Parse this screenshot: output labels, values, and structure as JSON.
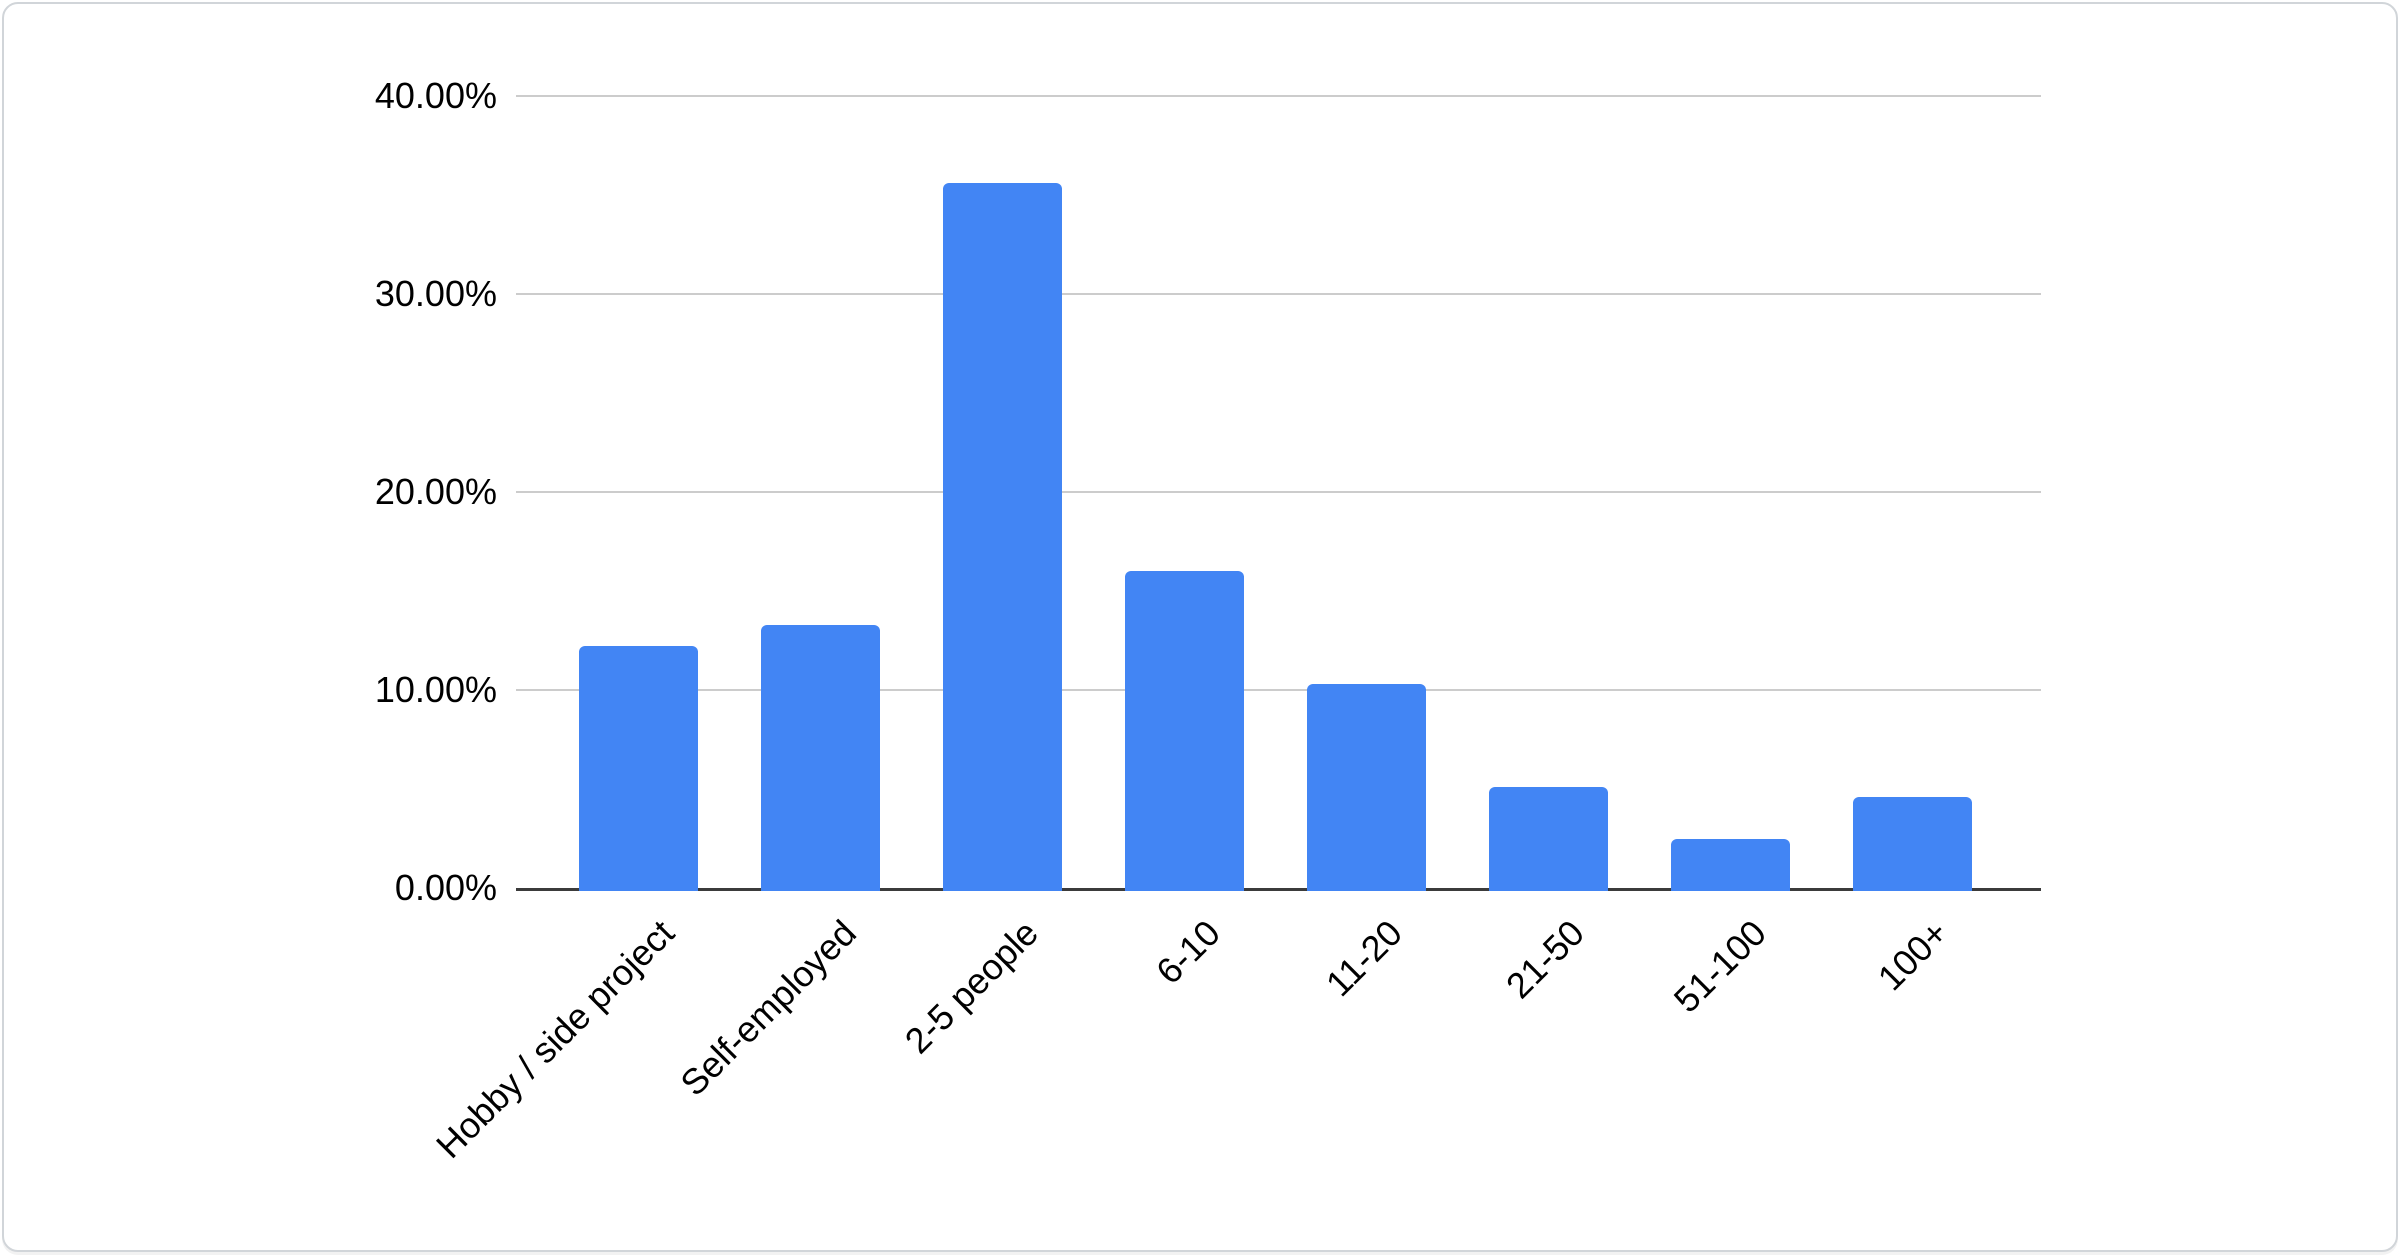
{
  "chart_data": {
    "type": "bar",
    "title": "",
    "categories": [
      "Hobby / side project",
      "Self-employed",
      "2-5 people",
      "6-10",
      "11-20",
      "21-50",
      "51-100",
      "100+"
    ],
    "values": [
      12.2,
      13.3,
      35.6,
      16.0,
      10.3,
      5.1,
      2.5,
      4.6
    ],
    "value_unit": "%",
    "xlabel": "",
    "ylabel": "",
    "ylim": [
      0,
      40
    ],
    "yticks": [
      {
        "value": 40,
        "label": "40.00%"
      },
      {
        "value": 30,
        "label": "30.00%"
      },
      {
        "value": 20,
        "label": "20.00%"
      },
      {
        "value": 10,
        "label": "10.00%"
      },
      {
        "value": 0,
        "label": "0.00%"
      }
    ],
    "grid": "horizontal",
    "legend": "none",
    "x_label_rotation_deg": 45,
    "colors": {
      "bar": "#4285f4",
      "gridline": "#cccccc",
      "axis_line": "#3b3b3b",
      "label_text": "#000000",
      "card_border": "#d1d5d9",
      "card_background": "#ffffff"
    }
  }
}
